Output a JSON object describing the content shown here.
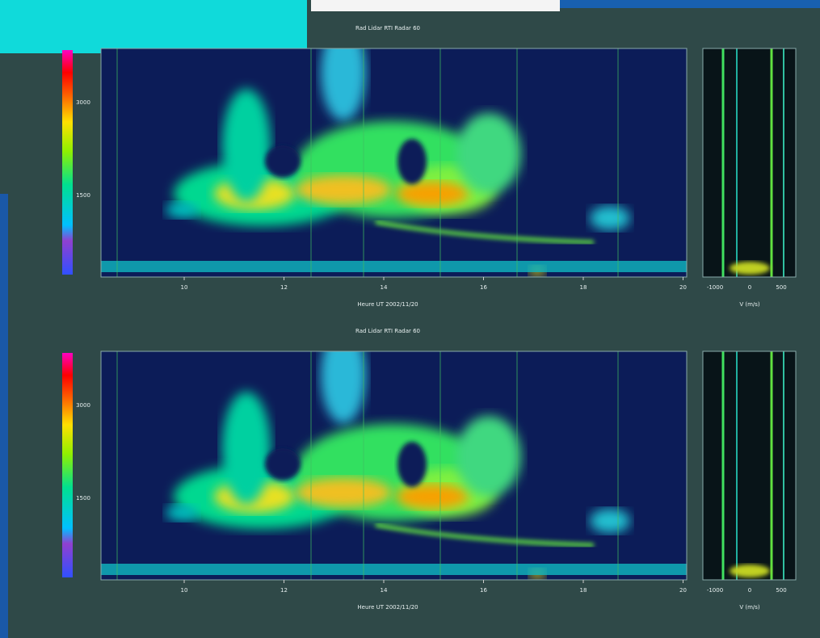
{
  "panels": [
    {
      "title": "Rad Lidar RTI Radar 60",
      "x_axis": {
        "label": "Heure UT 2002/11/20",
        "ticks": [
          "10",
          "12",
          "14",
          "16",
          "18",
          "20"
        ]
      },
      "y_axis": {
        "ticks": [
          "3000",
          "1500"
        ]
      },
      "side": {
        "label": "V (m/s)",
        "ticks": [
          "-1000",
          "0",
          "500"
        ]
      }
    },
    {
      "title": "Rad Lidar RTI Radar 60",
      "x_axis": {
        "label": "Heure UT 2002/11/20",
        "ticks": [
          "10",
          "12",
          "14",
          "16",
          "18",
          "20"
        ]
      },
      "y_axis": {
        "ticks": [
          "3000",
          "1500"
        ]
      },
      "side": {
        "label": "V (m/s)",
        "ticks": [
          "-1000",
          "0",
          "500"
        ]
      }
    }
  ]
}
